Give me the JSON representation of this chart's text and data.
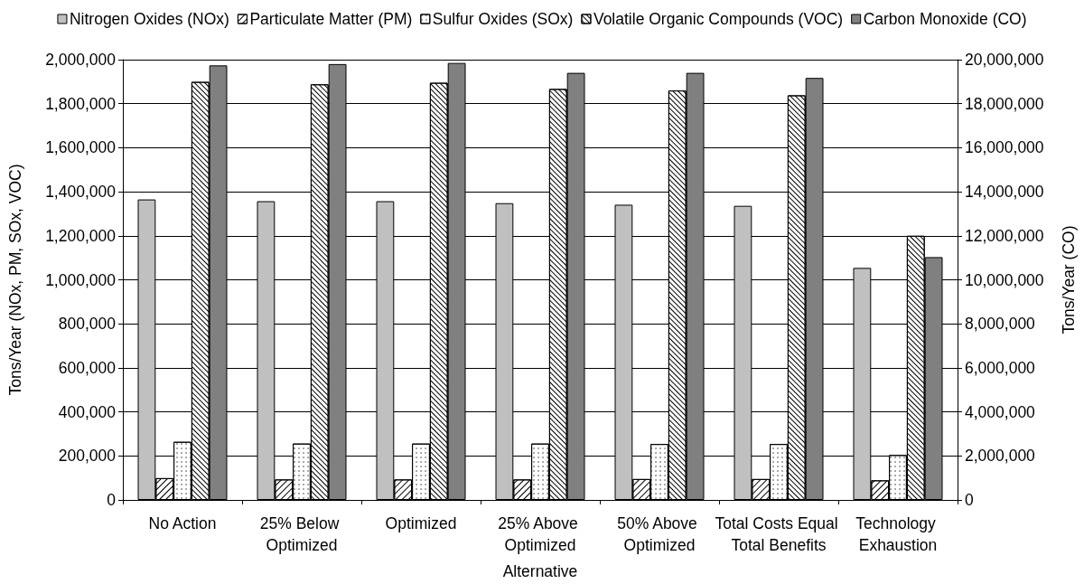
{
  "chart_data": {
    "type": "bar",
    "xlabel": "Alternative",
    "ylabel": "Tons/Year (NOx, PM, SOx, VOC)",
    "y2label": "Tons/Year (CO)",
    "categories": [
      "No Action",
      "25% Below Optimized",
      "Optimized",
      "25% Above Optimized",
      "50% Above Optimized",
      "Total Costs Equal Total Benefits",
      "Technology Exhaustion"
    ],
    "series": [
      {
        "name": "Nitrogen Oxides (NOx)",
        "color": "#c0c0c0",
        "values": [
          1365000,
          1357000,
          1357000,
          1348000,
          1341000,
          1336000,
          1054000
        ]
      },
      {
        "name": "Particulate Matter (PM)",
        "color": "#ffffff",
        "values": [
          99000,
          93000,
          93000,
          93000,
          95000,
          95000,
          89000
        ]
      },
      {
        "name": "Sulfur Oxides (SOx)",
        "color": "#ffffff",
        "values": [
          264000,
          256000,
          256000,
          256000,
          254000,
          254000,
          204000
        ]
      },
      {
        "name": "Volatile Organic Compounds (VOC)",
        "color": "#ffffff",
        "values": [
          1899000,
          1888000,
          1895000,
          1867000,
          1860000,
          1838000,
          1200000
        ]
      },
      {
        "name": "Carbon Monoxide (CO)",
        "color": "#808080",
        "axis": "y2",
        "values": [
          19740000,
          19800000,
          19850000,
          19400000,
          19400000,
          19170000,
          11030000
        ]
      }
    ],
    "ylim": [
      0,
      2000000
    ],
    "yticks": [
      0,
      {
        "value": 200000,
        "label": "200,000"
      },
      {
        "value": 400000,
        "label": "400,000"
      },
      {
        "value": 600000,
        "label": "600,000"
      },
      {
        "value": 800000,
        "label": "800,000"
      },
      {
        "value": 1000000,
        "label": "1,000,000"
      },
      {
        "value": 1200000,
        "label": "1,200,000"
      },
      {
        "value": 1400000,
        "label": "1,400,000"
      },
      {
        "value": 1600000,
        "label": "1,600,000"
      },
      {
        "value": 1800000,
        "label": "1,800,000"
      },
      {
        "value": 2000000,
        "label": "2,000,000"
      }
    ],
    "y2lim": [
      0,
      20000000
    ],
    "y2ticks": [
      0,
      {
        "value": 2000000,
        "label": "2,000,000"
      },
      {
        "value": 4000000,
        "label": "4,000,000"
      },
      {
        "value": 6000000,
        "label": "6,000,000"
      },
      {
        "value": 8000000,
        "label": "8,000,000"
      },
      {
        "value": 10000000,
        "label": "10,000,000"
      },
      {
        "value": 12000000,
        "label": "12,000,000"
      },
      {
        "value": 14000000,
        "label": "14,000,000"
      },
      {
        "value": 16000000,
        "label": "16,000,000"
      },
      {
        "value": 18000000,
        "label": "18,000,000"
      },
      {
        "value": 20000000,
        "label": "20,000,000"
      }
    ],
    "grid": "y",
    "legend": "top"
  }
}
